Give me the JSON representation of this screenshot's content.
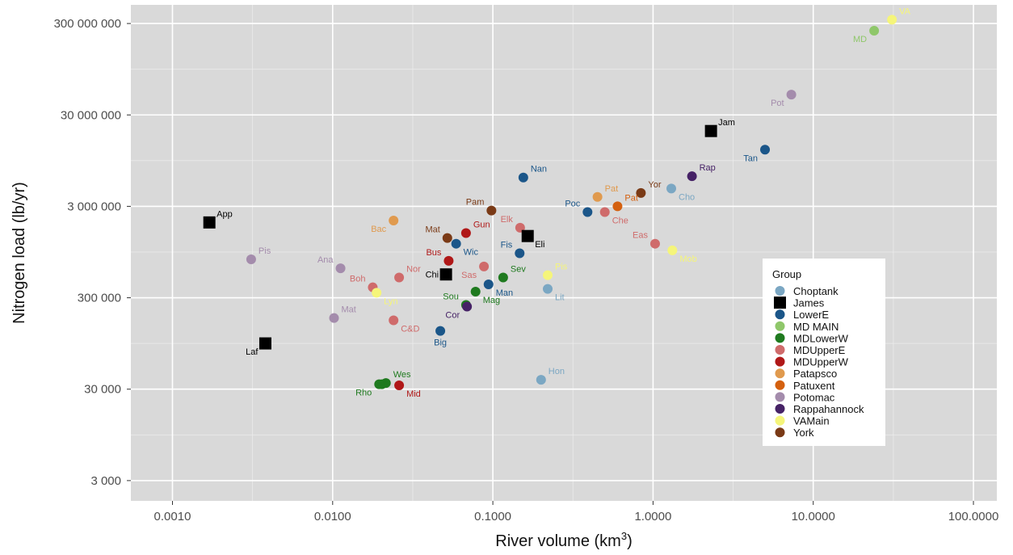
{
  "chart_data": {
    "type": "scatter",
    "xlabel": "River volume (km",
    "xlabel_sup": "3",
    "xlabel_suffix": ")",
    "ylabel": "Nitrogen load (lb/yr)",
    "x_scale": "log",
    "y_scale": "log",
    "xlim": [
      0.00055,
      140
    ],
    "ylim": [
      1800,
      480000000
    ],
    "x_ticks": [
      0.001,
      0.01,
      0.1,
      1,
      10,
      100
    ],
    "x_tick_labels": [
      "0.0010",
      "0.0100",
      "0.1000",
      "1.0000",
      "10.0000",
      "100.0000"
    ],
    "y_ticks": [
      3000,
      30000,
      300000,
      3000000,
      30000000,
      300000000
    ],
    "y_tick_labels": [
      "3 000",
      "30 000",
      "300 000",
      "3 000 000",
      "30 000 000",
      "300 000 000"
    ],
    "grid": true,
    "background": "#d9d9d9",
    "legend": {
      "title": "Group",
      "placement": "right-inside",
      "entries": [
        {
          "name": "Choptank",
          "color": "#7ba7c3",
          "shape": "circle"
        },
        {
          "name": "James",
          "color": "#000000",
          "shape": "square"
        },
        {
          "name": "LowerE",
          "color": "#1b5689",
          "shape": "circle"
        },
        {
          "name": "MD MAIN",
          "color": "#8fc76a",
          "shape": "circle"
        },
        {
          "name": "MDLowerW",
          "color": "#1f7a1f",
          "shape": "circle"
        },
        {
          "name": "MDUpperE",
          "color": "#cf6b6b",
          "shape": "circle"
        },
        {
          "name": "MDUpperW",
          "color": "#b01818",
          "shape": "circle"
        },
        {
          "name": "Patapsco",
          "color": "#e09a4e",
          "shape": "circle"
        },
        {
          "name": "Patuxent",
          "color": "#d4600f",
          "shape": "circle"
        },
        {
          "name": "Potomac",
          "color": "#a48cac",
          "shape": "circle"
        },
        {
          "name": "Rappahannock",
          "color": "#462266",
          "shape": "circle"
        },
        {
          "name": "VAMain",
          "color": "#f5f57a",
          "shape": "circle"
        },
        {
          "name": "York",
          "color": "#7a3a16",
          "shape": "circle"
        }
      ]
    },
    "points": [
      {
        "label": "VA",
        "group": "VAMain",
        "x": 31,
        "y": 330000000,
        "pos": "ne"
      },
      {
        "label": "MD",
        "group": "MD MAIN",
        "x": 24,
        "y": 250000000,
        "pos": "sw"
      },
      {
        "label": "Pot",
        "group": "Potomac",
        "x": 7.3,
        "y": 50000000,
        "pos": "sw"
      },
      {
        "label": "Jam",
        "group": "James",
        "x": 2.3,
        "y": 20000000,
        "pos": "ne"
      },
      {
        "label": "Tan",
        "group": "LowerE",
        "x": 5.0,
        "y": 12500000,
        "pos": "sw"
      },
      {
        "label": "Rap",
        "group": "Rappahannock",
        "x": 1.75,
        "y": 6400000,
        "pos": "ne"
      },
      {
        "label": "Cho",
        "group": "Choptank",
        "x": 1.3,
        "y": 4700000,
        "pos": "se"
      },
      {
        "label": "Yor",
        "group": "York",
        "x": 0.84,
        "y": 4200000,
        "pos": "ne"
      },
      {
        "label": "Pat",
        "group": "Patapsco",
        "x": 0.45,
        "y": 3800000,
        "pos": "ne"
      },
      {
        "label": "Pat",
        "group": "Patuxent",
        "x": 0.6,
        "y": 3000000,
        "pos": "ne"
      },
      {
        "label": "Che",
        "group": "MDUpperE",
        "x": 0.5,
        "y": 2600000,
        "pos": "se"
      },
      {
        "label": "Poc",
        "group": "LowerE",
        "x": 0.39,
        "y": 2600000,
        "pos": "nw"
      },
      {
        "label": "Nan",
        "group": "LowerE",
        "x": 0.155,
        "y": 6200000,
        "pos": "ne"
      },
      {
        "label": "Pam",
        "group": "York",
        "x": 0.098,
        "y": 2700000,
        "pos": "nw"
      },
      {
        "label": "Elk",
        "group": "MDUpperE",
        "x": 0.148,
        "y": 1750000,
        "pos": "nw"
      },
      {
        "label": "Eli",
        "group": "James",
        "x": 0.165,
        "y": 1420000,
        "pos": "se"
      },
      {
        "label": "Fis",
        "group": "LowerE",
        "x": 0.147,
        "y": 920000,
        "pos": "nw"
      },
      {
        "label": "Eas",
        "group": "MDUpperE",
        "x": 1.03,
        "y": 1170000,
        "pos": "nw"
      },
      {
        "label": "Mob",
        "group": "VAMain",
        "x": 1.32,
        "y": 990000,
        "pos": "se"
      },
      {
        "label": "Gun",
        "group": "MDUpperW",
        "x": 0.068,
        "y": 1530000,
        "pos": "ne"
      },
      {
        "label": "Mat",
        "group": "York",
        "x": 0.052,
        "y": 1350000,
        "pos": "nw"
      },
      {
        "label": "Wic",
        "group": "LowerE",
        "x": 0.059,
        "y": 1170000,
        "pos": "se"
      },
      {
        "label": "Bus",
        "group": "MDUpperW",
        "x": 0.053,
        "y": 760000,
        "pos": "nw"
      },
      {
        "label": "Sas",
        "group": "MDUpperE",
        "x": 0.088,
        "y": 660000,
        "pos": "sw"
      },
      {
        "label": "Sev",
        "group": "MDLowerW",
        "x": 0.116,
        "y": 500000,
        "pos": "ne"
      },
      {
        "label": "Man",
        "group": "LowerE",
        "x": 0.094,
        "y": 420000,
        "pos": "se"
      },
      {
        "label": "Chi",
        "group": "James",
        "x": 0.051,
        "y": 540000,
        "pos": "w"
      },
      {
        "label": "Sou",
        "group": "MDLowerW",
        "x": 0.068,
        "y": 250000,
        "pos": "nw"
      },
      {
        "label": "Mag",
        "group": "MDLowerW",
        "x": 0.078,
        "y": 350000,
        "pos": "se"
      },
      {
        "label": "Cor",
        "group": "Rappahannock",
        "x": 0.069,
        "y": 240000,
        "pos": "sw"
      },
      {
        "label": "Big",
        "group": "LowerE",
        "x": 0.047,
        "y": 130000,
        "pos": "s"
      },
      {
        "label": "Pis",
        "group": "VAMain",
        "x": 0.22,
        "y": 530000,
        "pos": "ne"
      },
      {
        "label": "Lit",
        "group": "Choptank",
        "x": 0.22,
        "y": 375000,
        "pos": "se"
      },
      {
        "label": "Hon",
        "group": "Choptank",
        "x": 0.2,
        "y": 38000,
        "pos": "ne"
      },
      {
        "label": "Bac",
        "group": "Patapsco",
        "x": 0.024,
        "y": 2100000,
        "pos": "sw"
      },
      {
        "label": "Ana",
        "group": "Potomac",
        "x": 0.0112,
        "y": 630000,
        "pos": "nw"
      },
      {
        "label": "Nor",
        "group": "MDUpperE",
        "x": 0.026,
        "y": 500000,
        "pos": "ne"
      },
      {
        "label": "Boh",
        "group": "MDUpperE",
        "x": 0.0178,
        "y": 390000,
        "pos": "nw"
      },
      {
        "label": "Lyn",
        "group": "VAMain",
        "x": 0.0188,
        "y": 340000,
        "pos": "se"
      },
      {
        "label": "Mat",
        "group": "Potomac",
        "x": 0.0102,
        "y": 180000,
        "pos": "ne"
      },
      {
        "label": "C&D",
        "group": "MDUpperE",
        "x": 0.024,
        "y": 170000,
        "pos": "se"
      },
      {
        "label": "Pis",
        "group": "Potomac",
        "x": 0.0031,
        "y": 790000,
        "pos": "ne"
      },
      {
        "label": "App",
        "group": "James",
        "x": 0.0017,
        "y": 2000000,
        "pos": "ne"
      },
      {
        "label": "Laf",
        "group": "James",
        "x": 0.0038,
        "y": 95000,
        "pos": "sw"
      },
      {
        "label": "Wes",
        "group": "MDLowerW",
        "x": 0.0215,
        "y": 35000,
        "pos": "ne"
      },
      {
        "label": "",
        "group": "MDLowerW",
        "x": 0.0203,
        "y": 34000,
        "pos": "ne"
      },
      {
        "label": "Rho",
        "group": "MDLowerW",
        "x": 0.0195,
        "y": 34000,
        "pos": "sw"
      },
      {
        "label": "Mid",
        "group": "MDUpperW",
        "x": 0.026,
        "y": 33000,
        "pos": "se"
      }
    ]
  }
}
